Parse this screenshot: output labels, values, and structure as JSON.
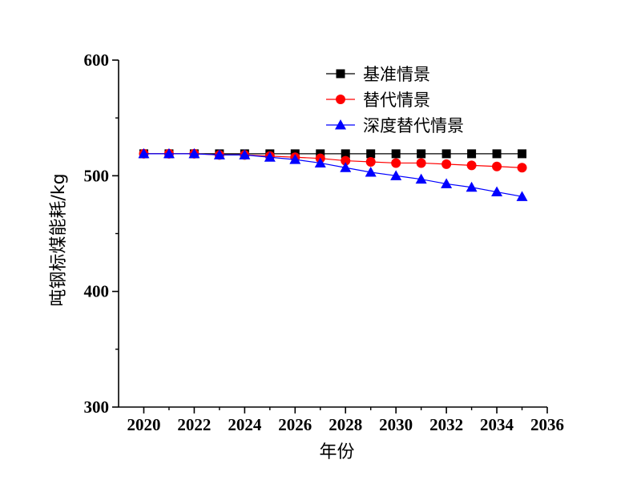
{
  "chart_data": {
    "type": "line",
    "title": "",
    "xlabel": "年份",
    "ylabel": "吨钢标煤能耗/kg",
    "xlim": [
      2019,
      2036
    ],
    "ylim": [
      300,
      600
    ],
    "xticks": [
      2020,
      2022,
      2024,
      2026,
      2028,
      2030,
      2032,
      2034,
      2036
    ],
    "yticks": [
      300,
      400,
      500,
      600
    ],
    "grid": false,
    "legend_position": "top-right",
    "x": [
      2020,
      2021,
      2022,
      2023,
      2024,
      2025,
      2026,
      2027,
      2028,
      2029,
      2030,
      2031,
      2032,
      2033,
      2034,
      2035
    ],
    "series": [
      {
        "name": "基准情景",
        "color": "#000000",
        "marker": "square",
        "values": [
          519,
          519,
          519,
          519,
          519,
          519,
          519,
          519,
          519,
          519,
          519,
          519,
          519,
          519,
          519,
          519
        ]
      },
      {
        "name": "替代情景",
        "color": "#ff0000",
        "marker": "circle",
        "values": [
          519,
          519,
          519,
          518,
          518,
          517,
          516,
          515,
          513,
          512,
          511,
          511,
          510,
          509,
          508,
          507
        ]
      },
      {
        "name": "深度替代情景",
        "color": "#0000ff",
        "marker": "triangle",
        "values": [
          519,
          519,
          519,
          518,
          518,
          516,
          514,
          511,
          507,
          503,
          500,
          497,
          493,
          490,
          486,
          482
        ]
      }
    ]
  }
}
